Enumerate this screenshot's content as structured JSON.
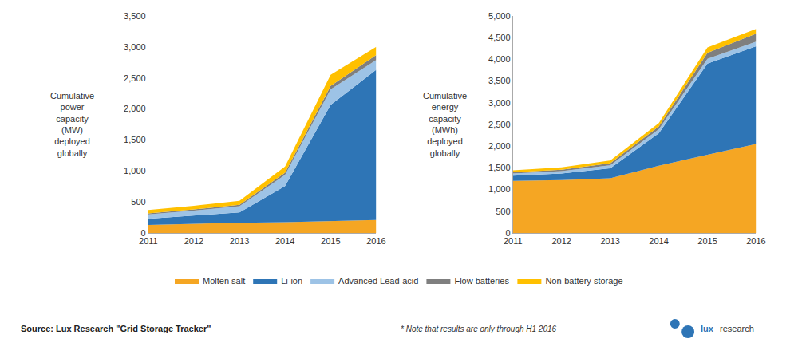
{
  "chart_data": [
    {
      "type": "area",
      "stacked": true,
      "grid": false,
      "legend": "bottom",
      "ylabel": "Cumulative\npower\ncapacity\n(MW)\ndeployed\nglobally",
      "x": [
        2011,
        2012,
        2013,
        2014,
        2015,
        2016
      ],
      "series": [
        {
          "name": "Molten salt",
          "color": "#F5A623",
          "values": [
            130,
            150,
            165,
            175,
            195,
            210
          ]
        },
        {
          "name": "Li-ion",
          "color": "#2E75B6",
          "values": [
            100,
            130,
            165,
            580,
            1870,
            2420
          ]
        },
        {
          "name": "Advanced Lead-acid",
          "color": "#9DC3E6",
          "values": [
            70,
            80,
            100,
            180,
            250,
            160
          ]
        },
        {
          "name": "Flow batteries",
          "color": "#7F7F7F",
          "values": [
            15,
            18,
            22,
            35,
            55,
            80
          ]
        },
        {
          "name": "Non-battery storage",
          "color": "#FFC000",
          "values": [
            55,
            60,
            65,
            100,
            180,
            130
          ]
        }
      ],
      "xlim": [
        2011,
        2016
      ],
      "xticks": [
        2011,
        2012,
        2013,
        2014,
        2015,
        2016
      ],
      "ylim": [
        0,
        3500
      ],
      "yticks": [
        0,
        500,
        {
          "value": 1000,
          "label": "1,000"
        },
        {
          "value": 1500,
          "label": "1,500"
        },
        {
          "value": 2000,
          "label": "2,000"
        },
        {
          "value": 2500,
          "label": "2,500"
        },
        {
          "value": 3000,
          "label": "3,000"
        },
        {
          "value": 3500,
          "label": "3,500"
        }
      ]
    },
    {
      "type": "area",
      "stacked": true,
      "grid": false,
      "ylabel": "Cumulative\nenergy\ncapacity\n(MWh)\ndeployed\nglobally",
      "x": [
        2011,
        2012,
        2013,
        2014,
        2015,
        2016
      ],
      "series": [
        {
          "name": "Molten salt",
          "color": "#F5A623",
          "values": [
            1200,
            1220,
            1260,
            1550,
            1800,
            2050
          ]
        },
        {
          "name": "Li-ion",
          "color": "#2E75B6",
          "values": [
            120,
            150,
            230,
            750,
            2100,
            2250
          ]
        },
        {
          "name": "Advanced Lead-acid",
          "color": "#9DC3E6",
          "values": [
            50,
            55,
            70,
            90,
            110,
            105
          ]
        },
        {
          "name": "Flow batteries",
          "color": "#7F7F7F",
          "values": [
            25,
            30,
            45,
            65,
            140,
            185
          ]
        },
        {
          "name": "Non-battery storage",
          "color": "#FFC000",
          "values": [
            50,
            55,
            65,
            75,
            125,
            110
          ]
        }
      ],
      "xlim": [
        2011,
        2016
      ],
      "xticks": [
        2011,
        2012,
        2013,
        2014,
        2015,
        2016
      ],
      "ylim": [
        0,
        5000
      ],
      "yticks": [
        0,
        500,
        {
          "value": 1000,
          "label": "1,000"
        },
        {
          "value": 1500,
          "label": "1,500"
        },
        {
          "value": 2000,
          "label": "2,000"
        },
        {
          "value": 2500,
          "label": "2,500"
        },
        {
          "value": 3000,
          "label": "3,000"
        },
        {
          "value": 3500,
          "label": "3,500"
        },
        {
          "value": 4000,
          "label": "4,000"
        },
        {
          "value": 4500,
          "label": "4,500"
        },
        {
          "value": 5000,
          "label": "5,000"
        }
      ]
    }
  ],
  "annotations": [
    "Source: Lux Research \"Grid Storage Tracker\"",
    "* Note that results are only through H1 2016",
    "lux",
    "research"
  ]
}
